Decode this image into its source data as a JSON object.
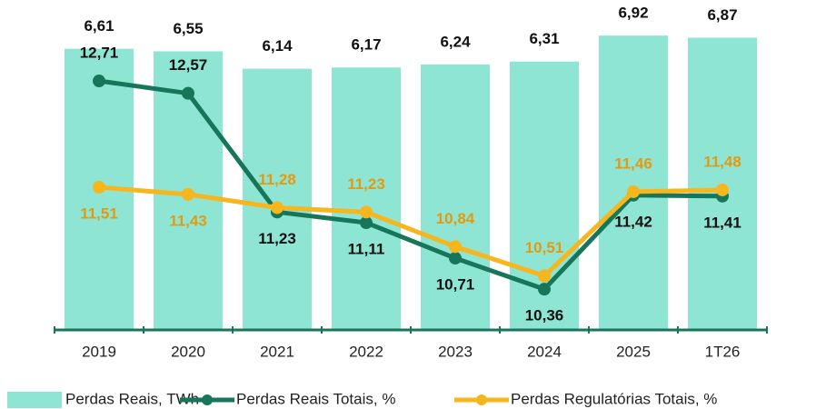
{
  "chart_data": {
    "type": "bar-line",
    "categories": [
      "2019",
      "2020",
      "2021",
      "2022",
      "2023",
      "2024",
      "2025",
      "1T26"
    ],
    "ylim": [
      0,
      7.5
    ],
    "y2lim": [
      9.9,
      13.5
    ],
    "series": [
      {
        "name": "Perdas Reais, TWh",
        "type": "bar",
        "color": "#8fe5d3",
        "values": [
          6.61,
          6.55,
          6.14,
          6.17,
          6.24,
          6.31,
          6.92,
          6.87
        ],
        "value_labels": [
          "6,61",
          "6,55",
          "6,14",
          "6,17",
          "6,24",
          "6,31",
          "6,92",
          "6,87"
        ]
      },
      {
        "name": "Perdas Reais Totais, %",
        "type": "line",
        "axis": "y2",
        "color": "#17765a",
        "values": [
          12.71,
          12.57,
          11.23,
          11.11,
          10.71,
          10.36,
          11.42,
          11.41
        ],
        "value_labels": [
          "12,71",
          "12,57",
          "11,23",
          "11,11",
          "10,71",
          "10,36",
          "11,42",
          "11,41"
        ]
      },
      {
        "name": "Perdas Regulatórias Totais, %",
        "type": "line",
        "axis": "y2",
        "color": "#f7b51e",
        "values": [
          11.51,
          11.43,
          11.28,
          11.23,
          10.84,
          10.51,
          11.46,
          11.48
        ],
        "value_labels": [
          "11,51",
          "11,43",
          "11,28",
          "11,23",
          "10,84",
          "10,51",
          "11,46",
          "11,48"
        ]
      }
    ]
  }
}
